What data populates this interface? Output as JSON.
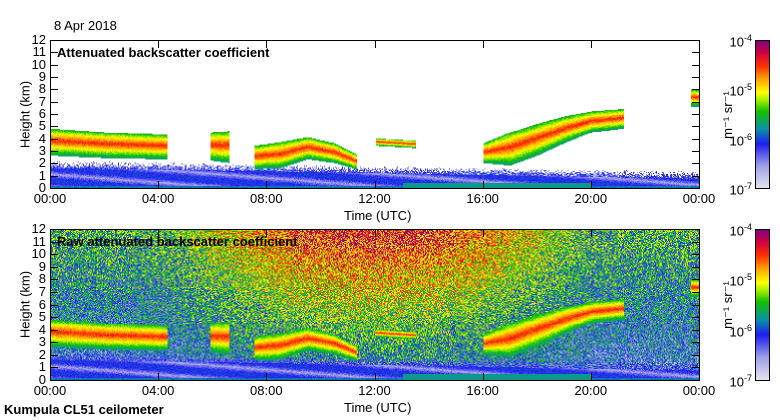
{
  "header": {
    "date": "8 Apr 2018"
  },
  "footer": {
    "instrument": "Kumpula CL51 ceilometer"
  },
  "colorbar": {
    "unit_label": "m⁻¹ sr⁻¹",
    "ticks": [
      "-7",
      "-6",
      "-5",
      "-4"
    ],
    "base": "10"
  },
  "chart_data": [
    {
      "type": "heatmap",
      "title": "Attenuated backscatter coefficient",
      "xlabel": "Time (UTC)",
      "ylabel": "Height (km)",
      "xlim": [
        0,
        24
      ],
      "ylim": [
        0,
        12
      ],
      "xticks": [
        "00:00",
        "04:00",
        "08:00",
        "12:00",
        "16:00",
        "20:00",
        "00:00"
      ],
      "yticks": [
        "0",
        "1",
        "2",
        "3",
        "4",
        "5",
        "6",
        "7",
        "8",
        "9",
        "10",
        "11",
        "12"
      ],
      "colorscale": "log",
      "crange": [
        1e-07,
        0.0001
      ],
      "noise_filtered": true,
      "cloud_layer": [
        {
          "t": 0,
          "base": 2.6,
          "top": 4.8
        },
        {
          "t": 2,
          "base": 2.4,
          "top": 4.5
        },
        {
          "t": 4.3,
          "base": 2.3,
          "top": 4.3
        },
        {
          "t": 4.31,
          "base": null,
          "top": null
        },
        {
          "t": 5.9,
          "base": 2.2,
          "top": 4.5
        },
        {
          "t": 6.6,
          "base": 2.0,
          "top": 4.6
        },
        {
          "t": 6.8,
          "base": null,
          "top": null
        },
        {
          "t": 7.5,
          "base": 1.5,
          "top": 3.4
        },
        {
          "t": 8.5,
          "base": 1.6,
          "top": 3.7
        },
        {
          "t": 9.5,
          "base": 2.3,
          "top": 4.1
        },
        {
          "t": 10.5,
          "base": 2.0,
          "top": 3.6
        },
        {
          "t": 11.3,
          "base": 1.5,
          "top": 2.7
        },
        {
          "t": 11.4,
          "base": null,
          "top": null
        },
        {
          "t": 12,
          "base": 3.4,
          "top": 4.0
        },
        {
          "t": 13.5,
          "base": 3.2,
          "top": 3.8
        },
        {
          "t": 13.6,
          "base": null,
          "top": null
        },
        {
          "t": 16,
          "base": 2.0,
          "top": 3.6
        },
        {
          "t": 17,
          "base": 1.8,
          "top": 4.5
        },
        {
          "t": 18,
          "base": 2.6,
          "top": 5.2
        },
        {
          "t": 19,
          "base": 3.6,
          "top": 5.8
        },
        {
          "t": 20,
          "base": 4.5,
          "top": 6.2
        },
        {
          "t": 21.2,
          "base": 4.8,
          "top": 6.4
        },
        {
          "t": 21.3,
          "base": null,
          "top": null
        },
        {
          "t": 23.7,
          "base": 6.6,
          "top": 8.0
        },
        {
          "t": 24,
          "base": 6.6,
          "top": 8.0
        }
      ]
    },
    {
      "type": "heatmap",
      "title": "Raw attenuated backscatter coefficient",
      "xlabel": "Time (UTC)",
      "ylabel": "Height (km)",
      "xlim": [
        0,
        24
      ],
      "ylim": [
        0,
        12
      ],
      "xticks": [
        "00:00",
        "04:00",
        "08:00",
        "12:00",
        "16:00",
        "20:00",
        "00:00"
      ],
      "yticks": [
        "0",
        "1",
        "2",
        "3",
        "4",
        "5",
        "6",
        "7",
        "8",
        "9",
        "10",
        "11",
        "12"
      ],
      "colorscale": "log",
      "crange": [
        1e-07,
        0.0001
      ],
      "noise_filtered": false
    }
  ]
}
